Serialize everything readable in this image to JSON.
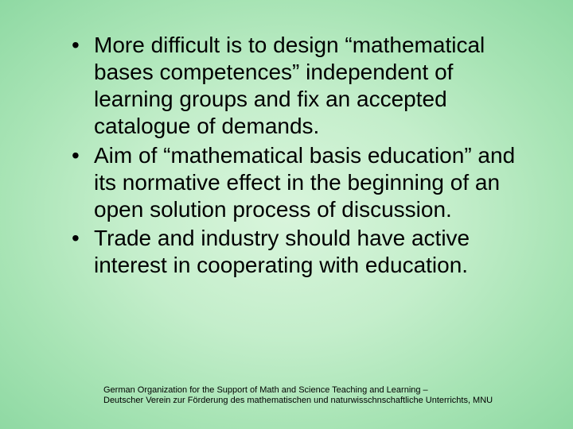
{
  "slide": {
    "background_gradient": {
      "type": "radial",
      "center": "#d9f5dc",
      "mid": "#c4eecb",
      "outer": "#a8e4b5",
      "edge": "#8fd9a3"
    },
    "text_color": "#000000",
    "bullet_fontsize": 28,
    "footer_fontsize": 11,
    "bullets": [
      "More difficult is to design “mathematical bases competences” independent of learning groups and fix an accepted catalogue of demands.",
      "Aim of “mathematical basis education” and its normative effect in the beginning of an open solution process of discussion.",
      "Trade and industry should have active interest in cooperating with education."
    ],
    "footer": {
      "line1": "German Organization for the Support of Math and Science Teaching and Learning –",
      "line2": "Deutscher Verein zur Förderung des mathematischen und naturwisschnschaftliche Unterrichts, MNU"
    }
  }
}
